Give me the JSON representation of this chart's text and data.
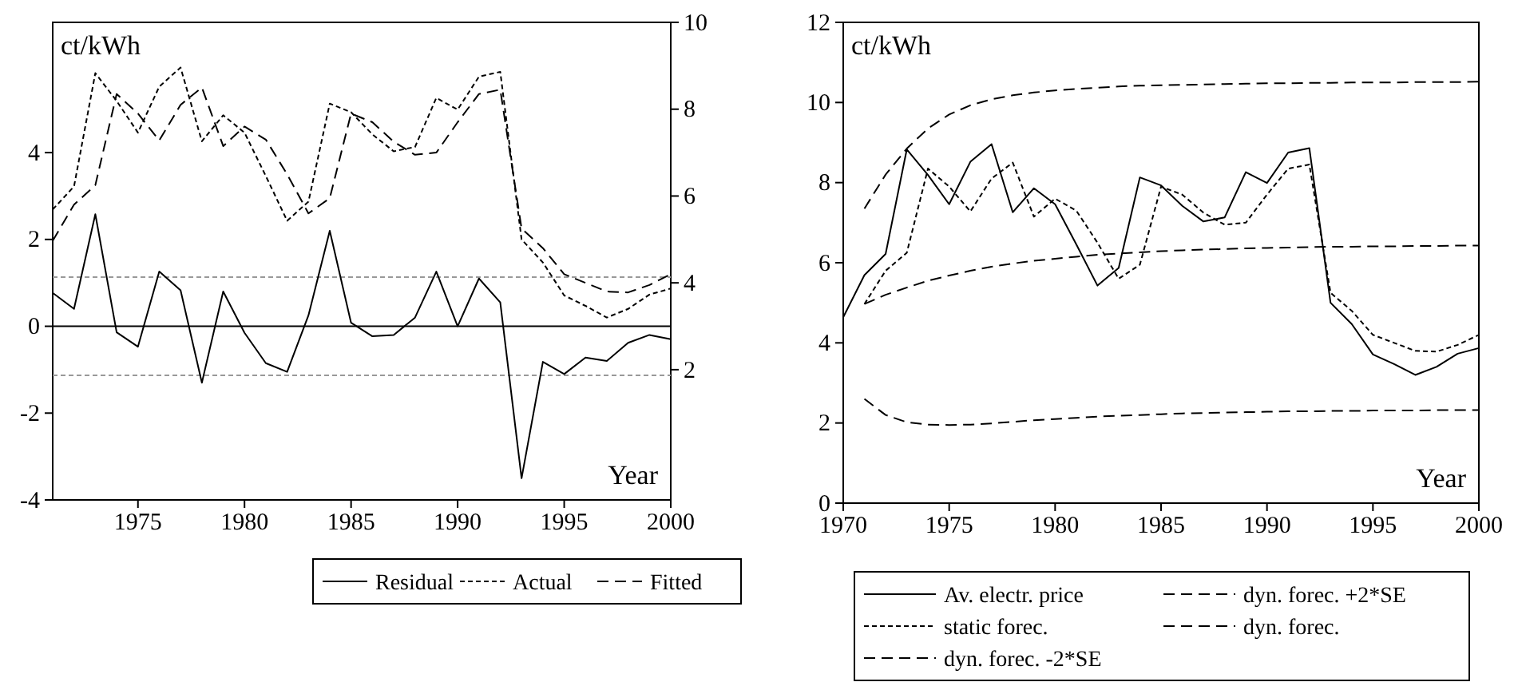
{
  "chart_data": [
    {
      "type": "line",
      "ylabel": "ct/kWh",
      "xlabel": "Year",
      "x": [
        1971,
        1972,
        1973,
        1974,
        1975,
        1976,
        1977,
        1978,
        1979,
        1980,
        1981,
        1982,
        1983,
        1984,
        1985,
        1986,
        1987,
        1988,
        1989,
        1990,
        1991,
        1992,
        1993,
        1994,
        1995,
        1996,
        1997,
        1998,
        1999,
        2000
      ],
      "xlim": [
        1971,
        2000
      ],
      "xticks": [
        1975,
        1980,
        1985,
        1990,
        1995,
        2000
      ],
      "ylim": [
        -4,
        7
      ],
      "yticks": [
        -4,
        -2,
        0,
        2,
        4
      ],
      "y2lim": [
        -1,
        10
      ],
      "y2ticks": [
        2,
        4,
        6,
        8,
        10
      ],
      "legend": "bottom",
      "grid": false,
      "ref_lines": [
        {
          "axis": "y",
          "value": 0,
          "color": "#000000",
          "line_style": "solid"
        },
        {
          "axis": "y",
          "value": 1.13,
          "color": "#999999",
          "line_style": "dotted"
        },
        {
          "axis": "y",
          "value": -1.13,
          "color": "#999999",
          "line_style": "dotted"
        }
      ],
      "series": [
        {
          "name": "Residual",
          "color": "#000000",
          "line_style": "solid",
          "values": [
            0.77,
            0.4,
            2.58,
            -0.14,
            -0.47,
            1.26,
            0.83,
            -1.3,
            0.8,
            -0.15,
            -0.85,
            -1.05,
            0.25,
            2.2,
            0.08,
            -0.23,
            -0.2,
            0.2,
            1.26,
            0.0,
            1.1,
            0.55,
            -3.5,
            -0.82,
            -1.1,
            -0.72,
            -0.8,
            -0.38,
            -0.2,
            -0.3
          ]
        },
        {
          "name": "Actual",
          "color": "#000000",
          "line_style": "dotted",
          "axis": "y2",
          "values": [
            5.69,
            6.22,
            8.83,
            8.19,
            7.46,
            8.52,
            8.96,
            7.26,
            7.86,
            7.46,
            6.46,
            5.43,
            5.87,
            8.13,
            7.93,
            7.42,
            7.03,
            7.13,
            8.26,
            7.99,
            8.75,
            8.86,
            5.0,
            4.47,
            3.71,
            3.47,
            3.2,
            3.4,
            3.73,
            3.87
          ]
        },
        {
          "name": "Fitted",
          "color": "#000000",
          "line_style": "dashed",
          "axis": "y2",
          "values": [
            4.97,
            5.8,
            6.25,
            8.35,
            7.9,
            7.28,
            8.1,
            8.5,
            7.15,
            7.6,
            7.3,
            6.5,
            5.6,
            5.95,
            7.9,
            7.7,
            7.25,
            6.95,
            7.0,
            7.7,
            8.35,
            8.45,
            5.25,
            4.8,
            4.2,
            4.0,
            3.8,
            3.78,
            3.95,
            4.2
          ]
        }
      ]
    },
    {
      "type": "line",
      "ylabel": "ct/kWh",
      "xlabel": "Year",
      "x": [
        1971,
        1972,
        1973,
        1974,
        1975,
        1976,
        1977,
        1978,
        1979,
        1980,
        1981,
        1982,
        1983,
        1984,
        1985,
        1986,
        1987,
        1988,
        1989,
        1990,
        1991,
        1992,
        1993,
        1994,
        1995,
        1996,
        1997,
        1998,
        1999,
        2000
      ],
      "xlim": [
        1970,
        2000
      ],
      "xticks": [
        1970,
        1975,
        1980,
        1985,
        1990,
        1995,
        2000
      ],
      "ylim": [
        0,
        12
      ],
      "yticks": [
        0,
        2,
        4,
        6,
        8,
        10,
        12
      ],
      "legend": "bottom",
      "grid": false,
      "series": [
        {
          "name": "Av. electr. price",
          "color": "#000000",
          "line_style": "solid",
          "x": [
            1970,
            1971,
            1972,
            1973,
            1974,
            1975,
            1976,
            1977,
            1978,
            1979,
            1980,
            1981,
            1982,
            1983,
            1984,
            1985,
            1986,
            1987,
            1988,
            1989,
            1990,
            1991,
            1992,
            1993,
            1994,
            1995,
            1996,
            1997,
            1998,
            1999,
            2000
          ],
          "values": [
            4.64,
            5.69,
            6.22,
            8.83,
            8.19,
            7.46,
            8.52,
            8.96,
            7.26,
            7.86,
            7.46,
            6.46,
            5.43,
            5.87,
            8.13,
            7.93,
            7.42,
            7.03,
            7.13,
            8.26,
            7.99,
            8.75,
            8.86,
            5.0,
            4.47,
            3.71,
            3.47,
            3.2,
            3.4,
            3.73,
            3.87
          ]
        },
        {
          "name": "dyn. forec. +2*SE",
          "color": "#000000",
          "line_style": "dashed",
          "values": [
            7.35,
            8.2,
            8.85,
            9.35,
            9.7,
            9.93,
            10.08,
            10.18,
            10.25,
            10.3,
            10.34,
            10.37,
            10.4,
            10.42,
            10.43,
            10.44,
            10.45,
            10.46,
            10.47,
            10.48,
            10.48,
            10.49,
            10.49,
            10.5,
            10.5,
            10.5,
            10.51,
            10.51,
            10.51,
            10.52
          ]
        },
        {
          "name": "static forec.",
          "color": "#000000",
          "line_style": "dotted",
          "values": [
            4.97,
            5.8,
            6.25,
            8.35,
            7.9,
            7.28,
            8.1,
            8.5,
            7.15,
            7.6,
            7.3,
            6.5,
            5.6,
            5.95,
            7.9,
            7.7,
            7.25,
            6.95,
            7.0,
            7.7,
            8.35,
            8.45,
            5.25,
            4.8,
            4.2,
            4.0,
            3.8,
            3.78,
            3.95,
            4.2
          ]
        },
        {
          "name": "dyn. forec.",
          "color": "#000000",
          "line_style": "dashed",
          "values": [
            4.97,
            5.2,
            5.38,
            5.55,
            5.68,
            5.8,
            5.9,
            5.98,
            6.05,
            6.1,
            6.15,
            6.2,
            6.23,
            6.26,
            6.29,
            6.31,
            6.33,
            6.34,
            6.36,
            6.37,
            6.38,
            6.39,
            6.4,
            6.4,
            6.41,
            6.41,
            6.42,
            6.42,
            6.43,
            6.43
          ]
        },
        {
          "name": "dyn. forec. -2*SE",
          "color": "#000000",
          "line_style": "dashed",
          "values": [
            2.6,
            2.2,
            2.02,
            1.96,
            1.95,
            1.96,
            1.99,
            2.03,
            2.07,
            2.1,
            2.13,
            2.16,
            2.18,
            2.2,
            2.22,
            2.24,
            2.25,
            2.26,
            2.27,
            2.28,
            2.29,
            2.29,
            2.3,
            2.3,
            2.31,
            2.31,
            2.31,
            2.32,
            2.32,
            2.32
          ]
        }
      ]
    }
  ]
}
